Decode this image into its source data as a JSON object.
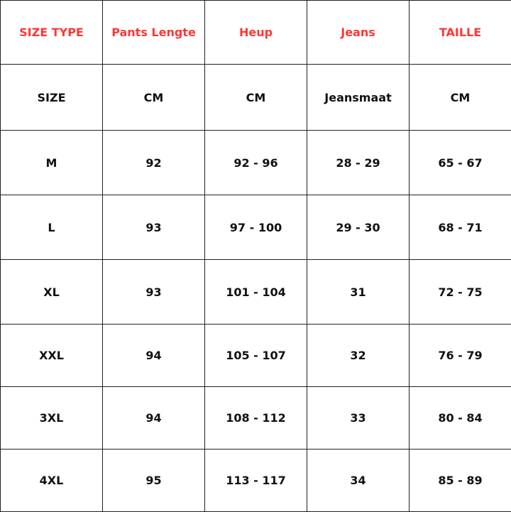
{
  "accent_color": "#ff3636",
  "header": [
    "SIZE TYPE",
    "Pants Lengte",
    "Heup",
    "Jeans",
    "TAILLE"
  ],
  "units": [
    "SIZE",
    "CM",
    "CM",
    "Jeansmaat",
    "CM"
  ],
  "rows": [
    [
      "M",
      "92",
      "92 - 96",
      "28 - 29",
      "65 - 67"
    ],
    [
      "L",
      "93",
      "97 - 100",
      "29 - 30",
      "68 - 71"
    ],
    [
      "XL",
      "93",
      "101 - 104",
      "31",
      "72 - 75"
    ],
    [
      "XXL",
      "94",
      "105 - 107",
      "32",
      "76 - 79"
    ],
    [
      "3XL",
      "94",
      "108 - 112",
      "33",
      "80 - 84"
    ],
    [
      "4XL",
      "95",
      "113 - 117",
      "34",
      "85 - 89"
    ]
  ]
}
